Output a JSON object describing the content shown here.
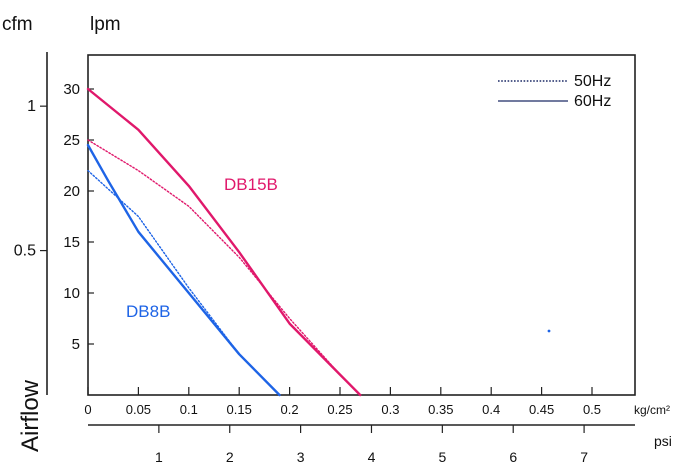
{
  "chart_data": {
    "type": "line",
    "title": "",
    "ylabel": "Airflow",
    "y_left_unit": "cfm",
    "y_right_unit": "lpm",
    "x_unit": "kg/cm²",
    "x2_unit": "psi",
    "xlim": [
      0,
      0.55
    ],
    "ylim_lpm": [
      0,
      32
    ],
    "x_ticks": [
      0,
      0.05,
      0.1,
      0.15,
      0.2,
      0.25,
      0.3,
      0.35,
      0.4,
      0.45,
      0.5
    ],
    "x_tick_labels": [
      "0",
      "0.05",
      "0.1",
      "0.15",
      "0.2",
      "0.25",
      "0.3",
      "0.35",
      "0.4",
      "0.45",
      "0.5"
    ],
    "x2_ticks": [
      1,
      2,
      3,
      4,
      5,
      6,
      7
    ],
    "x2_tick_labels": [
      "1",
      "2",
      "3",
      "4",
      "5",
      "6",
      "7"
    ],
    "y_lpm_ticks": [
      5,
      10,
      15,
      20,
      25,
      30
    ],
    "y_lpm_tick_labels": [
      "5",
      "10",
      "15",
      "20",
      "25",
      "30"
    ],
    "y_cfm_ticks": [
      0.5,
      1
    ],
    "y_cfm_tick_labels": [
      "0.5",
      "1"
    ],
    "grid": false,
    "legend": {
      "position": "top-right",
      "entries": [
        {
          "label": "50Hz",
          "style": "dotted"
        },
        {
          "label": "60Hz",
          "style": "solid"
        }
      ]
    },
    "annotations": [
      {
        "text": "DB15B",
        "color": "#e0186b"
      },
      {
        "text": "DB8B",
        "color": "#1e64e6"
      }
    ],
    "series": [
      {
        "model": "DB15B",
        "frequency": "60Hz",
        "color": "#e0186b",
        "style": "solid",
        "x": [
          0,
          0.05,
          0.1,
          0.15,
          0.2,
          0.25,
          0.27
        ],
        "y": [
          30,
          26,
          20.5,
          14,
          7,
          2,
          0
        ]
      },
      {
        "model": "DB15B",
        "frequency": "50Hz",
        "color": "#e0186b",
        "style": "dotted",
        "x": [
          0,
          0.05,
          0.1,
          0.15,
          0.2,
          0.25,
          0.27
        ],
        "y": [
          25,
          22,
          18.5,
          13.5,
          7.5,
          2,
          0
        ]
      },
      {
        "model": "DB8B",
        "frequency": "60Hz",
        "color": "#1e64e6",
        "style": "solid",
        "x": [
          0,
          0.02,
          0.05,
          0.1,
          0.15,
          0.19
        ],
        "y": [
          24.5,
          21,
          16,
          10,
          4,
          0
        ]
      },
      {
        "model": "DB8B",
        "frequency": "50Hz",
        "color": "#1e64e6",
        "style": "dotted",
        "x": [
          0,
          0.05,
          0.1,
          0.15,
          0.19
        ],
        "y": [
          22,
          17.5,
          10.5,
          4,
          0
        ]
      }
    ]
  }
}
